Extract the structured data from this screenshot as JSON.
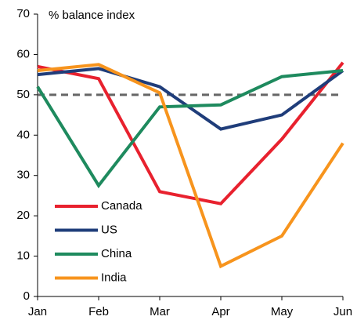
{
  "chart_data": {
    "type": "line",
    "y_label": "% balance index",
    "categories": [
      "Jan",
      "Feb",
      "Mar",
      "Apr",
      "May",
      "Jun"
    ],
    "series": [
      {
        "name": "Canada",
        "color": "#e8212e",
        "values": [
          57,
          54,
          26,
          23,
          39,
          58
        ]
      },
      {
        "name": "US",
        "color": "#1f3d7a",
        "values": [
          55,
          56.5,
          52,
          41.5,
          45,
          56
        ]
      },
      {
        "name": "China",
        "color": "#1e8a5e",
        "values": [
          52,
          27.5,
          47,
          47.5,
          54.5,
          56
        ]
      },
      {
        "name": "India",
        "color": "#f7941d",
        "values": [
          56,
          57.5,
          50.5,
          7.5,
          15,
          38
        ]
      }
    ],
    "reference_line": 50,
    "ylim": [
      0,
      70
    ],
    "yticks": [
      0,
      10,
      20,
      30,
      40,
      50,
      60,
      70
    ],
    "grid": false,
    "legend": "lower left"
  }
}
